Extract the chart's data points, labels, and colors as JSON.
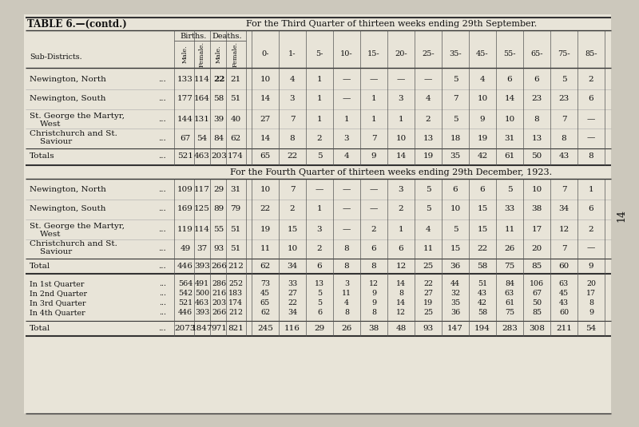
{
  "title_left": "TABLE 6.—(contd.)",
  "title_right": "For the Third Quarter of thirteen weeks ending 29th September.",
  "title_q4": "For the Fourth Quarter of thirteen weeks ending 29th December, 1923.",
  "bg_color": "#ccc8bc",
  "table_bg": "#e8e4d8",
  "page_number": "14",
  "col_headers_rotated": [
    "Male.",
    "Female.",
    "Male.",
    "Female."
  ],
  "col_headers_top": [
    "Births.",
    "Deaths."
  ],
  "col_headers_age": [
    "0-",
    "1-",
    "5-",
    "10-",
    "15-",
    "20-",
    "25-",
    "35-",
    "45-",
    "55-",
    "65-",
    "75-",
    "85-"
  ],
  "subdistricts_label": "Sub-Districts.",
  "q3_rows": [
    {
      "name1": "Newington, North",
      "name2": "",
      "data": [
        "133",
        "114",
        "22",
        "21",
        "10",
        "4",
        "1",
        "—",
        "—",
        "—",
        "—",
        "5",
        "4",
        "6",
        "6",
        "5",
        "2"
      ]
    },
    {
      "name1": "Newington, South",
      "name2": "",
      "data": [
        "177",
        "164",
        "58",
        "51",
        "14",
        "3",
        "1",
        "—",
        "1",
        "3",
        "4",
        "7",
        "10",
        "14",
        "23",
        "23",
        "6"
      ]
    },
    {
      "name1": "St. George the Martyr,",
      "name2": "    West",
      "data": [
        "144",
        "131",
        "39",
        "40",
        "27",
        "7",
        "1",
        "1",
        "1",
        "1",
        "2",
        "5",
        "9",
        "10",
        "8",
        "7",
        "—"
      ]
    },
    {
      "name1": "Christchurch and St.",
      "name2": "    Saviour",
      "data": [
        "67",
        "54",
        "84",
        "62",
        "14",
        "8",
        "2",
        "3",
        "7",
        "10",
        "13",
        "18",
        "19",
        "31",
        "13",
        "8",
        "—"
      ]
    }
  ],
  "q3_totals": {
    "name1": "Totals",
    "name2": "",
    "data": [
      "521",
      "463",
      "203",
      "174",
      "65",
      "22",
      "5",
      "4",
      "9",
      "14",
      "19",
      "35",
      "42",
      "61",
      "50",
      "43",
      "8"
    ]
  },
  "q4_rows": [
    {
      "name1": "Newington, North",
      "name2": "",
      "data": [
        "109",
        "117",
        "29",
        "31",
        "10",
        "7",
        "—",
        "—",
        "—",
        "3",
        "5",
        "6",
        "6",
        "5",
        "10",
        "7",
        "1"
      ]
    },
    {
      "name1": "Newington, South",
      "name2": "",
      "data": [
        "169",
        "125",
        "89",
        "79",
        "22",
        "2",
        "1",
        "—",
        "—",
        "2",
        "5",
        "10",
        "15",
        "33",
        "38",
        "34",
        "6"
      ]
    },
    {
      "name1": "St. George the Martyr,",
      "name2": "    West",
      "data": [
        "119",
        "114",
        "55",
        "51",
        "19",
        "15",
        "3",
        "—",
        "2",
        "1",
        "4",
        "5",
        "15",
        "11",
        "17",
        "12",
        "2"
      ]
    },
    {
      "name1": "Christchurch and St.",
      "name2": "    Saviour",
      "data": [
        "49",
        "37",
        "93",
        "51",
        "11",
        "10",
        "2",
        "8",
        "6",
        "6",
        "11",
        "15",
        "22",
        "26",
        "20",
        "7",
        "—"
      ]
    }
  ],
  "q4_totals": {
    "name1": "Total",
    "name2": "",
    "data": [
      "446",
      "393",
      "266",
      "212",
      "62",
      "34",
      "6",
      "8",
      "8",
      "12",
      "25",
      "36",
      "58",
      "75",
      "85",
      "60",
      "9"
    ]
  },
  "summary_rows": [
    {
      "name1": "In 1st Quarter",
      "name2": "",
      "data": [
        "564",
        "491",
        "286",
        "252",
        "73",
        "33",
        "13",
        "3",
        "12",
        "14",
        "22",
        "44",
        "51",
        "84",
        "106",
        "63",
        "20"
      ]
    },
    {
      "name1": "In 2nd Quarter",
      "name2": "",
      "data": [
        "542",
        "500",
        "216",
        "183",
        "45",
        "27",
        "5",
        "11",
        "9",
        "8",
        "27",
        "32",
        "43",
        "63",
        "67",
        "45",
        "17"
      ]
    },
    {
      "name1": "In 3rd Quarter",
      "name2": "",
      "data": [
        "521",
        "463",
        "203",
        "174",
        "65",
        "22",
        "5",
        "4",
        "9",
        "14",
        "19",
        "35",
        "42",
        "61",
        "50",
        "43",
        "8"
      ]
    },
    {
      "name1": "In 4th Quarter",
      "name2": "",
      "data": [
        "446",
        "393",
        "266",
        "212",
        "62",
        "34",
        "6",
        "8",
        "8",
        "12",
        "25",
        "36",
        "58",
        "75",
        "85",
        "60",
        "9"
      ]
    }
  ],
  "grand_total": {
    "name1": "Total",
    "name2": "",
    "data": [
      "2073",
      "1847",
      "971",
      "821",
      "245",
      "116",
      "29",
      "26",
      "38",
      "48",
      "93",
      "147",
      "194",
      "283",
      "308",
      "211",
      "54"
    ]
  }
}
